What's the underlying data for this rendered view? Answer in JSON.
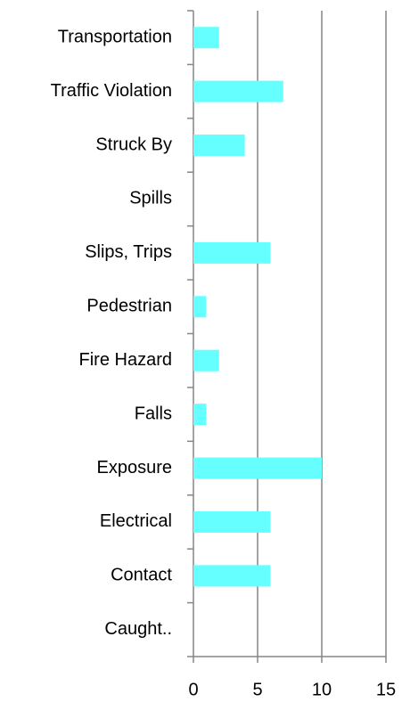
{
  "chart_data": {
    "type": "barh",
    "categories": [
      "Transportation",
      "Traffic Violation",
      "Struck By",
      "Spills",
      "Slips, Trips",
      "Pedestrian",
      "Fire Hazard",
      "Falls",
      "Exposure",
      "Electrical",
      "Contact",
      "Caught.."
    ],
    "values": [
      2,
      7,
      4,
      0,
      6,
      1,
      2,
      1,
      10,
      6,
      6,
      0
    ],
    "color": "#66ffff",
    "xlim": [
      0,
      15
    ],
    "xticks": [
      0,
      5,
      10,
      15
    ],
    "grid": true
  }
}
